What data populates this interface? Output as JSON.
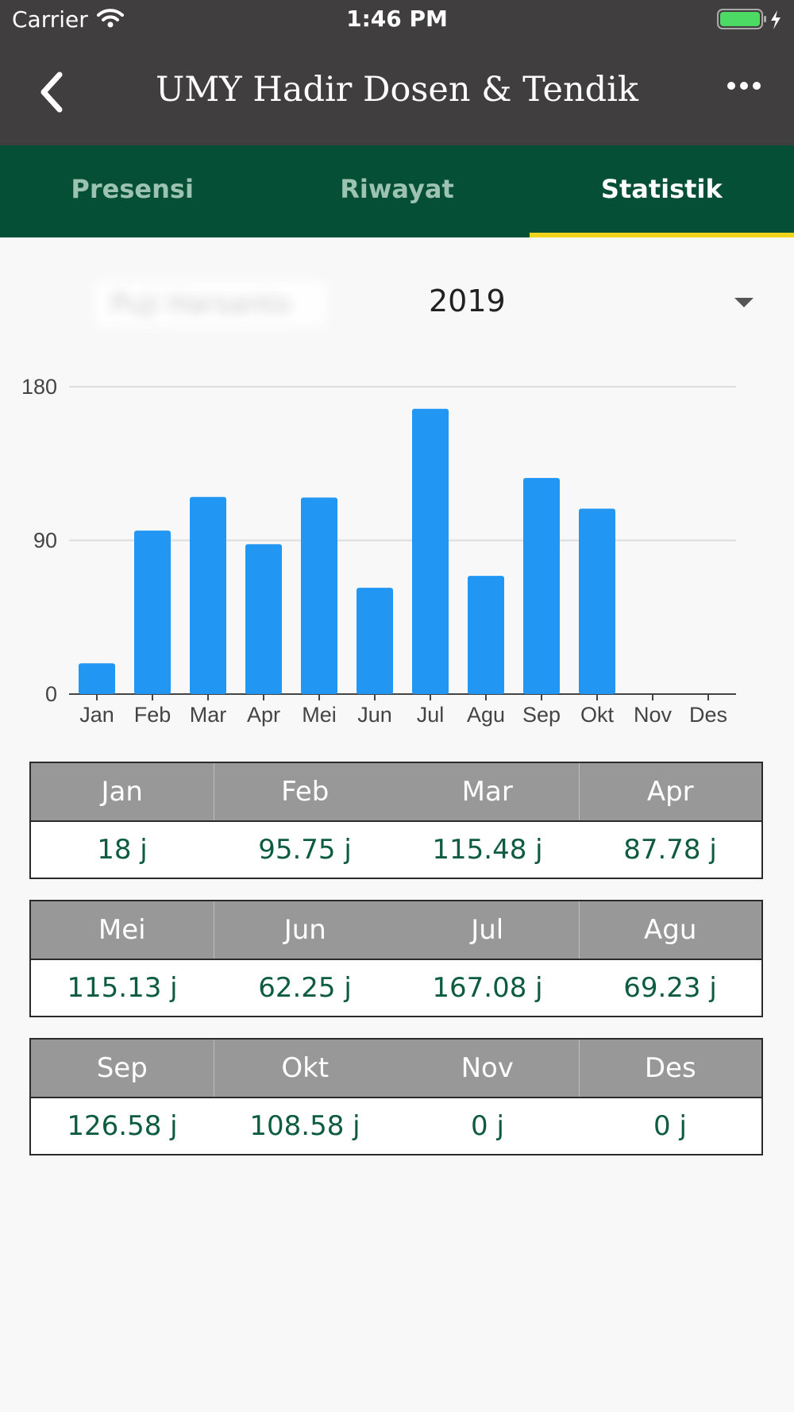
{
  "status": {
    "carrier": "Carrier",
    "time": "1:46 PM"
  },
  "nav": {
    "title": "UMY Hadir Dosen & Tendik"
  },
  "tabs": [
    {
      "label": "Presensi",
      "active": false
    },
    {
      "label": "Riwayat",
      "active": false
    },
    {
      "label": "Statistik",
      "active": true
    }
  ],
  "selector": {
    "name": "Puji Harsanto",
    "year": "2019"
  },
  "colors": {
    "nav_bg": "#403e3f",
    "tab_bg": "#064f37",
    "tab_indicator": "#f2d31c",
    "bar": "#2196f3",
    "value_text": "#0d5c40"
  },
  "chart_data": {
    "type": "bar",
    "categories": [
      "Jan",
      "Feb",
      "Mar",
      "Apr",
      "Mei",
      "Jun",
      "Jul",
      "Agu",
      "Sep",
      "Okt",
      "Nov",
      "Des"
    ],
    "values": [
      18,
      95.75,
      115.48,
      87.78,
      115.13,
      62.25,
      167.08,
      69.23,
      126.58,
      108.58,
      0,
      0
    ],
    "yticks": [
      0,
      90,
      180
    ],
    "ylim": [
      0,
      180
    ],
    "grid": true,
    "title": "",
    "xlabel": "",
    "ylabel": ""
  },
  "tables": [
    {
      "months": [
        "Jan",
        "Feb",
        "Mar",
        "Apr"
      ],
      "values": [
        "18 j",
        "95.75 j",
        "115.48 j",
        "87.78 j"
      ]
    },
    {
      "months": [
        "Mei",
        "Jun",
        "Jul",
        "Agu"
      ],
      "values": [
        "115.13 j",
        "62.25 j",
        "167.08 j",
        "69.23 j"
      ]
    },
    {
      "months": [
        "Sep",
        "Okt",
        "Nov",
        "Des"
      ],
      "values": [
        "126.58 j",
        "108.58 j",
        "0 j",
        "0 j"
      ]
    }
  ]
}
